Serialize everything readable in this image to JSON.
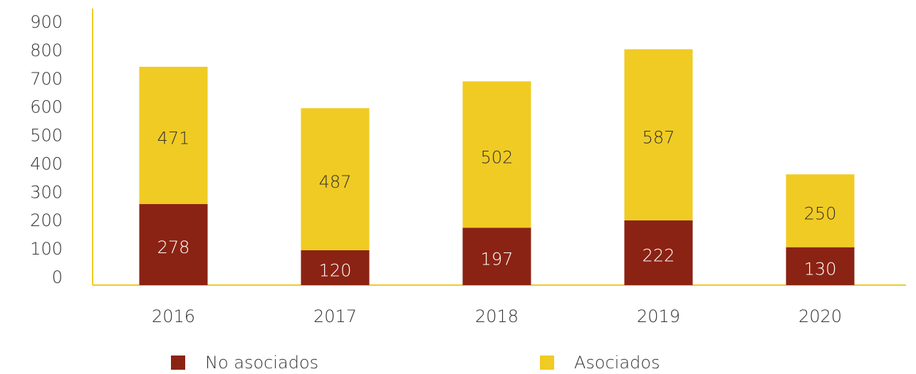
{
  "chart_data": {
    "type": "bar",
    "stacked": true,
    "categories": [
      "2016",
      "2017",
      "2018",
      "2019",
      "2020"
    ],
    "series": [
      {
        "name": "No asociados",
        "color": "#8b2314",
        "values": [
          278,
          120,
          197,
          222,
          130
        ]
      },
      {
        "name": "Asociados",
        "color": "#f0cb24",
        "values": [
          471,
          487,
          502,
          587,
          250
        ]
      }
    ],
    "ylim": [
      0,
      900
    ],
    "yticks": [
      0,
      100,
      200,
      300,
      400,
      500,
      600,
      700,
      800,
      900
    ],
    "grid": false,
    "legend": "bottom"
  }
}
